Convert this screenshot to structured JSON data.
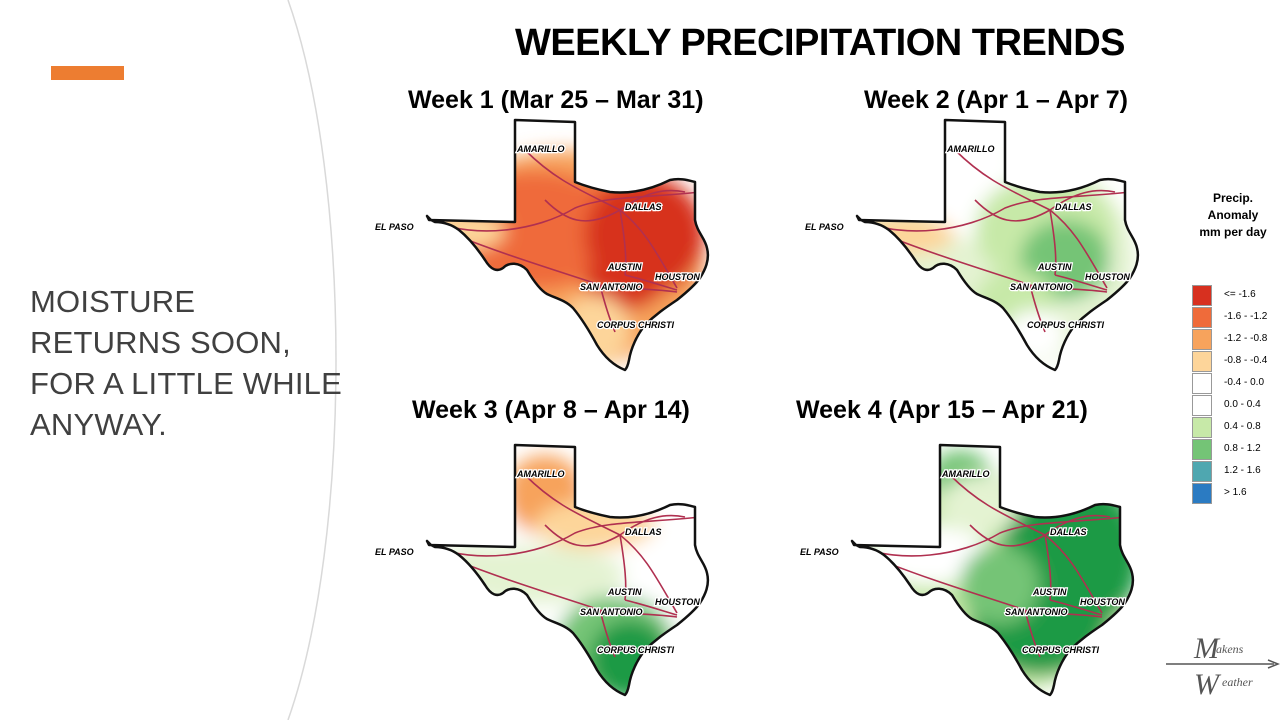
{
  "slide": {
    "text": "MOISTURE RETURNS SOON, FOR A LITTLE WHILE ANYWAY.",
    "accent_color": "#ed7d31"
  },
  "title": "WEEKLY PRECIPITATION TRENDS",
  "weeks": [
    {
      "label": "Week 1 (Mar 25 – Mar 31)"
    },
    {
      "label": "Week 2 (Apr 1 – Apr 7)"
    },
    {
      "label": "Week 3 (Apr 8 – Apr 14)"
    },
    {
      "label": "Week 4 (Apr 15 – Apr 21)"
    }
  ],
  "cities": {
    "amarillo": "AMARILLO",
    "el_paso": "EL PASO",
    "dallas": "DALLAS",
    "austin": "AUSTIN",
    "houston": "HOUSTON",
    "san_antonio": "SAN ANTONIO",
    "corpus_christi": "CORPUS CHRISTI"
  },
  "legend": {
    "title_lines": [
      "Precip.",
      "Anomaly",
      "mm per day"
    ],
    "items": [
      {
        "label": "<= -1.6",
        "color": "#d7301f"
      },
      {
        "label": "-1.6 - -1.2",
        "color": "#ef6b3a"
      },
      {
        "label": "-1.2 - -0.8",
        "color": "#f7a35c"
      },
      {
        "label": "-0.8 - -0.4",
        "color": "#fdd59a"
      },
      {
        "label": "-0.4 - 0.0",
        "color": "#ffffff"
      },
      {
        "label": "0.0 - 0.4",
        "color": "#ffffff"
      },
      {
        "label": "0.4 - 0.8",
        "color": "#c7e9a8"
      },
      {
        "label": "0.8 - 1.2",
        "color": "#74c476"
      },
      {
        "label": "1.2 - 1.6",
        "color": "#4fa7b0"
      },
      {
        "label": "> 1.6",
        "color": "#2b7bc2"
      }
    ]
  },
  "brand": {
    "line1": "akens",
    "line2": "eather",
    "m": "M",
    "w": "W"
  },
  "colors": {
    "road": "#b03050",
    "dry_strong": "#d7301f",
    "dry": "#ef6b3a",
    "dry_light": "#f7a35c",
    "dry_faint": "#fdd59a",
    "wet_faint": "#e4f3d2",
    "wet_light": "#c7e9a8",
    "wet": "#74c476",
    "wet_strong": "#1f9a44"
  }
}
